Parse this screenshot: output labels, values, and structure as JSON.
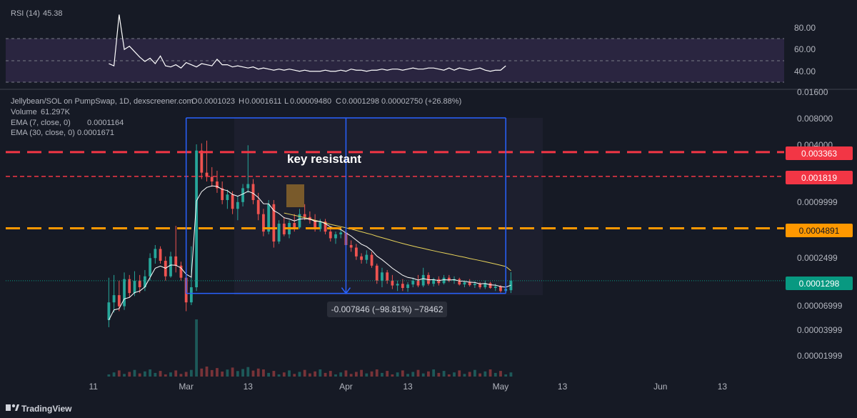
{
  "chart_data": {
    "type": "candlestick",
    "title": "Jellybean/SOL on PumpSwap, 1D, dexscreener.com",
    "ohlc": {
      "o_label": "O",
      "o": "0.0001023",
      "h_label": "H",
      "h": "0.0001611",
      "l_label": "L",
      "l": "0.00009480",
      "c_label": "C",
      "c": "0.0001298",
      "change": "0.00002750 (+26.88%)"
    },
    "volume": {
      "label": "Volume",
      "value": "61.297K"
    },
    "ema7": {
      "label": "EMA (7, close, 0)",
      "value": "0.0001164",
      "color": "#ffffff"
    },
    "ema30": {
      "label": "EMA (30, close, 0)",
      "value": "0.0001671",
      "color": "#e8d35a"
    },
    "rsi": {
      "label": "RSI (14)",
      "value": "45.38",
      "ticks": [
        "80.00",
        "60.00",
        "40.00"
      ],
      "levels": [
        70,
        50,
        30
      ],
      "ylim": [
        20,
        95
      ],
      "values": [
        47,
        45,
        92,
        60,
        63,
        58,
        53,
        49,
        52,
        47,
        54,
        45,
        44,
        46,
        43,
        48,
        46,
        44,
        47,
        46,
        45,
        51,
        46,
        46,
        44,
        45,
        44,
        43,
        44,
        42,
        43,
        42,
        41,
        42,
        41,
        42,
        41,
        40,
        41,
        40,
        40,
        40,
        41,
        40,
        40,
        41,
        40,
        42,
        41,
        41,
        40,
        41,
        41,
        42,
        41,
        42,
        42,
        41,
        42,
        43,
        42,
        42,
        43,
        43,
        42,
        41,
        43,
        41,
        43,
        42,
        41,
        42,
        43,
        41,
        40,
        41,
        41,
        45
      ]
    },
    "price_ticks": [
      "0.01600",
      "0.008000",
      "0.004000",
      "0.0009999",
      "0.0002499",
      "0.00006999",
      "0.00003999",
      "0.00001999"
    ],
    "price_tick_values": [
      0.016,
      0.008,
      0.004,
      0.0009999,
      0.0002499,
      6.999e-05,
      3.999e-05,
      1.999e-05
    ],
    "x_ticks": [
      "11",
      "Mar",
      "13",
      "Apr",
      "13",
      "May",
      "13",
      "Jun",
      "13"
    ],
    "x_tick_days": [
      11,
      29,
      41,
      60,
      72,
      90,
      102,
      121,
      133
    ],
    "x_domain_days": [
      -6,
      145
    ],
    "y_scale": "log",
    "ylim": [
      1e-05,
      0.02
    ],
    "levels": [
      {
        "value": 0.003363,
        "label": "0.003363",
        "color": "#f23645",
        "style": "long-dash"
      },
      {
        "value": 0.001819,
        "label": "0.001819",
        "color": "#f23645",
        "style": "short-dash"
      },
      {
        "value": 0.0004891,
        "label": "0.0004891",
        "color": "#ff9800",
        "style": "long-dash"
      }
    ],
    "last_price": {
      "value": 0.0001298,
      "label": "0.0001298",
      "color": "#089981"
    },
    "annotation": {
      "text": "key resistant"
    },
    "measure": {
      "from_day": 29,
      "to_day": 91,
      "top_price": 0.008,
      "bottom_price": 9.42e-05,
      "label": "-0.007846 (−98.81%) −78462"
    },
    "candle_start_day": 14,
    "candles": [
      [
        4.8e-05,
        0.00014,
        4e-05,
        7.5e-05
      ],
      [
        7.5e-05,
        0.00015,
        5.8e-05,
        9e-05
      ],
      [
        9e-05,
        0.00013,
        6e-05,
        6.8e-05
      ],
      [
        6.8e-05,
        0.00016,
        6.2e-05,
        0.000135
      ],
      [
        0.000135,
        0.00015,
        8.5e-05,
        9.5e-05
      ],
      [
        9.5e-05,
        0.000165,
        8.8e-05,
        0.00013
      ],
      [
        0.00013,
        0.00015,
        9.5e-05,
        0.00011
      ],
      [
        0.00011,
        0.00017,
        0.0001,
        0.000145
      ],
      [
        0.000145,
        0.00026,
        0.00013,
        0.00023
      ],
      [
        0.00023,
        0.00032,
        0.0002,
        0.00029
      ],
      [
        0.00029,
        0.00031,
        0.0002,
        0.000215
      ],
      [
        0.000215,
        0.00024,
        0.00013,
        0.000145
      ],
      [
        0.000145,
        0.00027,
        0.00014,
        0.00024
      ],
      [
        0.00024,
        0.00052,
        0.00016,
        0.00019
      ],
      [
        0.00019,
        0.00021,
        0.00013,
        0.00014
      ],
      [
        0.00014,
        0.00018,
        6e-05,
        7.5e-05
      ],
      [
        7.5e-05,
        0.00031,
        7e-05,
        0.00011
      ],
      [
        0.00011,
        0.0041,
        0.0001,
        0.0035
      ],
      [
        0.0035,
        0.0042,
        0.0017,
        0.002
      ],
      [
        0.002,
        0.0045,
        0.0016,
        0.0018
      ],
      [
        0.0018,
        0.0023,
        0.0014,
        0.0016
      ],
      [
        0.0016,
        0.0021,
        0.0012,
        0.00135
      ],
      [
        0.00135,
        0.0016,
        0.0009,
        0.001
      ],
      [
        0.001,
        0.0013,
        0.0008,
        0.00115
      ],
      [
        0.00115,
        0.00125,
        0.0007,
        0.0008
      ],
      [
        0.0008,
        0.0011,
        0.0006,
        0.00095
      ],
      [
        0.00095,
        0.0015,
        0.00085,
        0.00135
      ],
      [
        0.00135,
        0.004,
        0.0012,
        0.0015
      ],
      [
        0.0015,
        0.0017,
        0.0009,
        0.001
      ],
      [
        0.001,
        0.0012,
        0.0006,
        0.0007
      ],
      [
        0.0007,
        0.0008,
        0.0004,
        0.00045
      ],
      [
        0.00045,
        0.001,
        0.00042,
        0.0009
      ],
      [
        0.0009,
        0.001,
        0.0003,
        0.00035
      ],
      [
        0.00035,
        0.0006,
        0.00033,
        0.00055
      ],
      [
        0.00055,
        0.00065,
        0.0004,
        0.00042
      ],
      [
        0.00042,
        0.0006,
        0.00038,
        0.00056
      ],
      [
        0.00056,
        0.0007,
        0.00045,
        0.0005
      ],
      [
        0.0005,
        0.0008,
        0.00048,
        0.0007
      ],
      [
        0.0007,
        0.0009,
        0.0006,
        0.00065
      ],
      [
        0.00065,
        0.00075,
        0.00055,
        0.0006
      ],
      [
        0.0006,
        0.0007,
        0.00045,
        0.00048
      ],
      [
        0.00048,
        0.00062,
        0.00045,
        0.00058
      ],
      [
        0.00058,
        0.00062,
        0.00042,
        0.00045
      ],
      [
        0.00045,
        0.0005,
        0.00035,
        0.00038
      ],
      [
        0.00038,
        0.00045,
        0.00033,
        0.00042
      ],
      [
        0.00042,
        0.00048,
        0.00038,
        0.00044
      ],
      [
        0.00044,
        0.00046,
        0.0003,
        0.00032
      ],
      [
        0.00032,
        0.00036,
        0.00027,
        0.0003
      ],
      [
        0.0003,
        0.00033,
        0.00022,
        0.00024
      ],
      [
        0.00024,
        0.00026,
        0.0002,
        0.00022
      ],
      [
        0.00022,
        0.00028,
        0.0002,
        0.00025
      ],
      [
        0.00025,
        0.00027,
        0.00018,
        0.00019
      ],
      [
        0.00019,
        0.0002,
        0.00012,
        0.00013
      ],
      [
        0.00013,
        0.00018,
        0.00011,
        0.00016
      ],
      [
        0.00016,
        0.00017,
        0.00012,
        0.00013
      ],
      [
        0.00013,
        0.00015,
        0.000105,
        0.000115
      ],
      [
        0.000115,
        0.00013,
        0.0001,
        0.00012
      ],
      [
        0.00012,
        0.000135,
        0.0001,
        0.000108
      ],
      [
        0.000108,
        0.000125,
        9.8e-05,
        0.000118
      ],
      [
        0.000118,
        0.00014,
        0.00011,
        0.00013
      ],
      [
        0.00013,
        0.00015,
        0.00011,
        0.000115
      ],
      [
        0.000115,
        0.00018,
        0.00011,
        0.00015
      ],
      [
        0.00015,
        0.00016,
        0.000115,
        0.00012
      ],
      [
        0.00012,
        0.00014,
        0.000112,
        0.000135
      ],
      [
        0.000135,
        0.000145,
        0.000115,
        0.000122
      ],
      [
        0.000122,
        0.00015,
        0.000118,
        0.00014
      ],
      [
        0.00014,
        0.00015,
        0.000125,
        0.00013
      ],
      [
        0.00013,
        0.000145,
        0.00012,
        0.000135
      ],
      [
        0.000135,
        0.00014,
        0.000115,
        0.000118
      ],
      [
        0.000118,
        0.00013,
        0.00011,
        0.000125
      ],
      [
        0.000125,
        0.000135,
        0.000112,
        0.000116
      ],
      [
        0.000116,
        0.000128,
        0.000108,
        0.00012
      ],
      [
        0.00012,
        0.000125,
        0.000105,
        0.00011
      ],
      [
        0.00011,
        0.00013,
        0.000105,
        0.000122
      ],
      [
        0.000122,
        0.000126,
        0.000106,
        0.000108
      ],
      [
        0.000108,
        0.00012,
        0.0001,
        0.000112
      ],
      [
        0.000112,
        0.000116,
        9.6e-05,
        0.0001
      ],
      [
        0.0001,
        0.00011,
        9.4e-05,
        0.000106
      ],
      [
        0.000102,
        0.000161,
        9.5e-05,
        0.00013
      ]
    ],
    "ema7_values": [
      4.8e-05,
      6.2e-05,
      6.4e-05,
      8.2e-05,
      8.5e-05,
      9.6e-05,
      0.0001,
      0.000111,
      0.000141,
      0.000178,
      0.000188,
      0.000178,
      0.000193,
      0.000192,
      0.000179,
      0.000153,
      0.000142,
      0.00098,
      0.001235,
      0.001376,
      0.001432,
      0.001412,
      0.001309,
      0.001269,
      0.001152,
      0.001102,
      0.001164,
      0.001248,
      0.001186,
      0.001065,
      0.000911,
      0.000908,
      0.000766,
      0.000712,
      0.000639,
      0.000619,
      0.000589,
      0.000617,
      0.000625,
      0.000619,
      0.000584,
      0.000583,
      0.00055,
      0.000507,
      0.000486,
      0.000474,
      0.000435,
      0.000402,
      0.000362,
      0.000327,
      0.000308,
      0.000279,
      0.000242,
      0.000221,
      0.000199,
      0.000178,
      0.000163,
      0.000149,
      0.000141,
      0.000138,
      0.000132,
      0.000137,
      0.000133,
      0.000133,
      0.00013,
      0.000133,
      0.000132,
      0.000133,
      0.000129,
      0.000128,
      0.000125,
      0.000124,
      0.00012,
      0.000121,
      0.000117,
      0.000116,
      0.000112,
      0.00011,
      0.000116
    ],
    "ema30_values": [
      null,
      null,
      null,
      null,
      null,
      null,
      null,
      null,
      null,
      null,
      null,
      null,
      null,
      null,
      null,
      null,
      null,
      null,
      null,
      null,
      null,
      null,
      null,
      null,
      null,
      null,
      null,
      null,
      null,
      null,
      null,
      null,
      null,
      null,
      0.00072,
      0.0007,
      0.00068,
      0.00066,
      0.00064,
      0.00062,
      0.0006,
      0.00058,
      0.00056,
      0.00054,
      0.000525,
      0.00051,
      0.000495,
      0.00048,
      0.000463,
      0.000448,
      0.000432,
      0.000418,
      0.0004,
      0.000386,
      0.000372,
      0.000358,
      0.000345,
      0.000333,
      0.000322,
      0.000312,
      0.000302,
      0.000294,
      0.000285,
      0.000277,
      0.000269,
      0.000262,
      0.000255,
      0.000248,
      0.000241,
      0.000235,
      0.000228,
      0.000222,
      0.000216,
      0.00021,
      0.000204,
      0.000198,
      0.000192,
      0.000186,
      0.000167
    ]
  },
  "watermark": {
    "text": "TradingView"
  }
}
